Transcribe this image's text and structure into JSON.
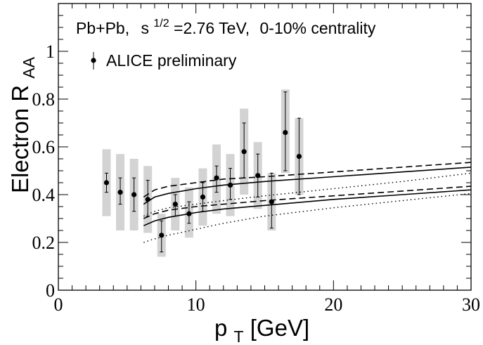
{
  "chart_data": {
    "type": "scatter",
    "title_line": {
      "system": "Pb+Pb,",
      "energy_prefix": "s",
      "energy_exp": "1/2",
      "energy_value": "=2.76  TeV,",
      "centrality": "0-10% centrality"
    },
    "legend": {
      "label": "ALICE  preliminary",
      "position": "top-left"
    },
    "xlabel": {
      "main": "p",
      "sub": "T",
      "unit": " [GeV]"
    },
    "ylabel": {
      "main": "Electron  R",
      "sub": "AA"
    },
    "xlim": [
      0,
      30
    ],
    "ylim": [
      0,
      1.2
    ],
    "x_ticks": [
      {
        "value": 0,
        "label": "0"
      },
      {
        "value": 10,
        "label": "10"
      },
      {
        "value": 20,
        "label": "20"
      },
      {
        "value": 30,
        "label": "30"
      }
    ],
    "y_ticks": [
      {
        "value": 0,
        "label": "0"
      },
      {
        "value": 0.2,
        "label": "0.2"
      },
      {
        "value": 0.4,
        "label": "0.4"
      },
      {
        "value": 0.6,
        "label": "0.6"
      },
      {
        "value": 0.8,
        "label": "0.8"
      },
      {
        "value": 1.0,
        "label": "1"
      }
    ],
    "series": [
      {
        "name": "ALICE preliminary",
        "points": [
          {
            "x": 3.5,
            "y": 0.45,
            "stat_lo": 0.41,
            "stat_hi": 0.49,
            "sys_lo": 0.31,
            "sys_hi": 0.59
          },
          {
            "x": 4.5,
            "y": 0.41,
            "stat_lo": 0.36,
            "stat_hi": 0.47,
            "sys_lo": 0.25,
            "sys_hi": 0.57
          },
          {
            "x": 5.5,
            "y": 0.4,
            "stat_lo": 0.33,
            "stat_hi": 0.47,
            "sys_lo": 0.25,
            "sys_hi": 0.55
          },
          {
            "x": 6.5,
            "y": 0.38,
            "stat_lo": 0.31,
            "stat_hi": 0.46,
            "sys_lo": 0.24,
            "sys_hi": 0.52
          },
          {
            "x": 7.5,
            "y": 0.23,
            "stat_lo": 0.16,
            "stat_hi": 0.29,
            "sys_lo": 0.14,
            "sys_hi": 0.32
          },
          {
            "x": 8.5,
            "y": 0.36,
            "stat_lo": 0.31,
            "stat_hi": 0.4,
            "sys_lo": 0.25,
            "sys_hi": 0.47
          },
          {
            "x": 9.5,
            "y": 0.32,
            "stat_lo": 0.28,
            "stat_hi": 0.37,
            "sys_lo": 0.22,
            "sys_hi": 0.43
          },
          {
            "x": 10.5,
            "y": 0.39,
            "stat_lo": 0.33,
            "stat_hi": 0.45,
            "sys_lo": 0.27,
            "sys_hi": 0.51
          },
          {
            "x": 11.5,
            "y": 0.47,
            "stat_lo": 0.41,
            "stat_hi": 0.52,
            "sys_lo": 0.32,
            "sys_hi": 0.61
          },
          {
            "x": 12.5,
            "y": 0.44,
            "stat_lo": 0.38,
            "stat_hi": 0.51,
            "sys_lo": 0.31,
            "sys_hi": 0.57
          },
          {
            "x": 13.5,
            "y": 0.58,
            "stat_lo": 0.47,
            "stat_hi": 0.7,
            "sys_lo": 0.4,
            "sys_hi": 0.76
          },
          {
            "x": 14.5,
            "y": 0.48,
            "stat_lo": 0.39,
            "stat_hi": 0.57,
            "sys_lo": 0.34,
            "sys_hi": 0.62
          },
          {
            "x": 15.5,
            "y": 0.37,
            "stat_lo": 0.26,
            "stat_hi": 0.49,
            "sys_lo": 0.25,
            "sys_hi": 0.49
          },
          {
            "x": 16.5,
            "y": 0.66,
            "stat_lo": 0.5,
            "stat_hi": 0.83,
            "sys_lo": 0.49,
            "sys_hi": 0.84
          },
          {
            "x": 17.5,
            "y": 0.56,
            "stat_lo": 0.4,
            "stat_hi": 0.72,
            "sys_lo": 0.4,
            "sys_hi": 0.72
          }
        ]
      }
    ],
    "model_curves": [
      {
        "name": "solid-upper",
        "style": "solid",
        "x": [
          6.2,
          7,
          8,
          10,
          12,
          15,
          20,
          25,
          30
        ],
        "y": [
          0.36,
          0.39,
          0.405,
          0.425,
          0.44,
          0.455,
          0.475,
          0.495,
          0.515
        ]
      },
      {
        "name": "solid-lower",
        "style": "solid",
        "x": [
          6.2,
          7,
          8,
          10,
          12,
          15,
          20,
          25,
          30
        ],
        "y": [
          0.27,
          0.29,
          0.305,
          0.325,
          0.34,
          0.355,
          0.38,
          0.4,
          0.42
        ]
      },
      {
        "name": "dashed-upper",
        "style": "dashed",
        "x": [
          6.2,
          7,
          8,
          10,
          12,
          15,
          20,
          25,
          30
        ],
        "y": [
          0.39,
          0.42,
          0.435,
          0.45,
          0.465,
          0.475,
          0.495,
          0.515,
          0.535
        ]
      },
      {
        "name": "dashed-lower",
        "style": "dashed",
        "x": [
          6.2,
          7,
          8,
          10,
          12,
          15,
          20,
          25,
          30
        ],
        "y": [
          0.3,
          0.32,
          0.335,
          0.35,
          0.36,
          0.375,
          0.395,
          0.415,
          0.435
        ]
      },
      {
        "name": "dotted-upper",
        "style": "dotted",
        "x": [
          6.2,
          7,
          8,
          10,
          12,
          15,
          20,
          25,
          30
        ],
        "y": [
          0.31,
          0.33,
          0.345,
          0.36,
          0.375,
          0.395,
          0.425,
          0.455,
          0.49
        ]
      },
      {
        "name": "dotted-lower",
        "style": "dotted",
        "x": [
          6.2,
          7,
          8,
          10,
          12,
          15,
          20,
          25,
          30
        ],
        "y": [
          0.2,
          0.215,
          0.23,
          0.255,
          0.28,
          0.31,
          0.345,
          0.375,
          0.405
        ]
      }
    ],
    "colors": {
      "marker": "#000000",
      "sys_box": "#d3d3d3",
      "axis": "#000000",
      "background": "#ffffff"
    }
  }
}
